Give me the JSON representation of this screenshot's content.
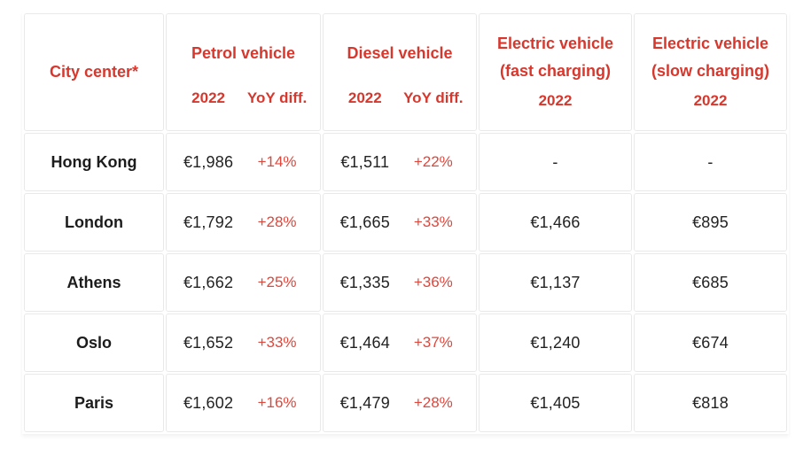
{
  "table": {
    "title_semantic": "City center parking or charging cost comparison 2022",
    "header": {
      "city": "City center*",
      "petrol": {
        "label": "Petrol vehicle",
        "year": "2022",
        "diff": "YoY diff."
      },
      "diesel": {
        "label": "Diesel vehicle",
        "year": "2022",
        "diff": "YoY diff."
      },
      "ev_fast": {
        "label_line1": "Electric vehicle",
        "label_line2": "(fast charging)",
        "year": "2022"
      },
      "ev_slow": {
        "label_line1": "Electric vehicle",
        "label_line2": "(slow charging)",
        "year": "2022"
      }
    },
    "rows": [
      {
        "city": "Hong Kong",
        "petrol_2022": "€1,986",
        "petrol_yoy": "+14%",
        "diesel_2022": "€1,511",
        "diesel_yoy": "+22%",
        "ev_fast_2022": "-",
        "ev_slow_2022": "-"
      },
      {
        "city": "London",
        "petrol_2022": "€1,792",
        "petrol_yoy": "+28%",
        "diesel_2022": "€1,665",
        "diesel_yoy": "+33%",
        "ev_fast_2022": "€1,466",
        "ev_slow_2022": "€895"
      },
      {
        "city": "Athens",
        "petrol_2022": "€1,662",
        "petrol_yoy": "+25%",
        "diesel_2022": "€1,335",
        "diesel_yoy": "+36%",
        "ev_fast_2022": "€1,137",
        "ev_slow_2022": "€685"
      },
      {
        "city": "Oslo",
        "petrol_2022": "€1,652",
        "petrol_yoy": "+33%",
        "diesel_2022": "€1,464",
        "diesel_yoy": "+37%",
        "ev_fast_2022": "€1,240",
        "ev_slow_2022": "€674"
      },
      {
        "city": "Paris",
        "petrol_2022": "€1,602",
        "petrol_yoy": "+16%",
        "diesel_2022": "€1,479",
        "diesel_yoy": "+28%",
        "ev_fast_2022": "€1,405",
        "ev_slow_2022": "€818"
      }
    ]
  },
  "colors": {
    "header_red": "#d6382e",
    "diff_red": "#e2453a",
    "text_dark": "#222222",
    "border_gray": "#e9e9e9",
    "background": "#ffffff"
  }
}
